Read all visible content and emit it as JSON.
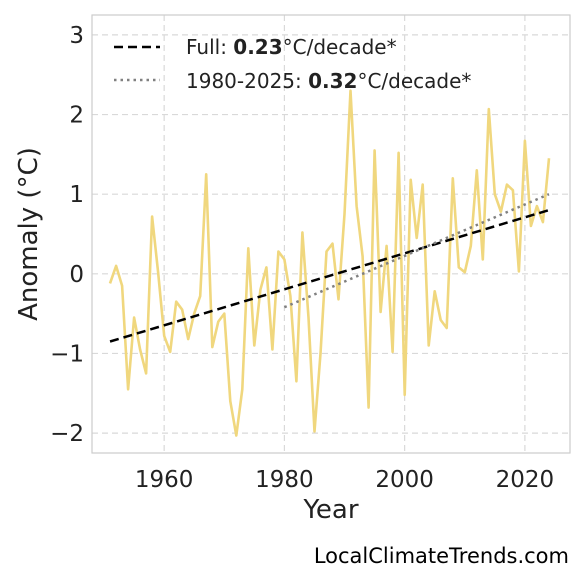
{
  "chart_data": {
    "type": "line",
    "xlabel": "Year",
    "ylabel": "Anomaly (°C)",
    "xlim": [
      1948,
      2027.5
    ],
    "ylim": [
      -2.25,
      3.25
    ],
    "xticks": [
      1960,
      1980,
      2000,
      2020
    ],
    "yticks": [
      -2,
      -1,
      0,
      1,
      2,
      3
    ],
    "ytick_labels": [
      "−2",
      "−1",
      "0",
      "1",
      "2",
      "3"
    ],
    "grid": true,
    "legend_position": "top-left",
    "colors": {
      "series": "#f0d77e",
      "full_trend": "#000000",
      "recent_trend": "#808080"
    },
    "series": [
      {
        "x": [
          1951,
          1952,
          1953,
          1954,
          1955,
          1956,
          1957,
          1958,
          1959,
          1960,
          1961,
          1962,
          1963,
          1964,
          1965,
          1966,
          1967,
          1968,
          1969,
          1970,
          1971,
          1972,
          1973,
          1974,
          1975,
          1976,
          1977,
          1978,
          1979,
          1980,
          1981,
          1982,
          1983,
          1984,
          1985,
          1986,
          1987,
          1988,
          1989,
          1990,
          1991,
          1992,
          1993,
          1994,
          1995,
          1996,
          1997,
          1998,
          1999,
          2000,
          2001,
          2002,
          2003,
          2004,
          2005,
          2006,
          2007,
          2008,
          2009,
          2010,
          2011,
          2012,
          2013,
          2014,
          2015,
          2016,
          2017,
          2018,
          2019,
          2020,
          2021,
          2022,
          2023,
          2024
        ],
        "values": [
          -0.12,
          0.1,
          -0.15,
          -1.45,
          -0.55,
          -0.95,
          -1.25,
          0.72,
          0.02,
          -0.78,
          -0.98,
          -0.35,
          -0.45,
          -0.82,
          -0.5,
          -0.28,
          1.25,
          -0.92,
          -0.6,
          -0.5,
          -1.6,
          -2.03,
          -1.45,
          0.32,
          -0.9,
          -0.2,
          0.08,
          -0.95,
          0.28,
          0.18,
          -0.28,
          -1.35,
          0.52,
          -0.55,
          -1.98,
          -1.0,
          0.28,
          0.38,
          -0.32,
          0.75,
          2.3,
          0.85,
          0.22,
          -1.68,
          1.55,
          -0.48,
          0.35,
          -0.98,
          1.52,
          -1.52,
          1.18,
          0.45,
          1.12,
          -0.9,
          -0.22,
          -0.58,
          -0.68,
          1.2,
          0.08,
          0.02,
          0.35,
          1.3,
          0.18,
          2.07,
          1.0,
          0.78,
          1.12,
          1.05,
          0.03,
          1.67,
          0.6,
          0.85,
          0.65,
          1.45
        ]
      }
    ],
    "trend_lines": [
      {
        "name": "full",
        "style": "dashed",
        "x": [
          1951,
          2024
        ],
        "values": [
          -0.85,
          0.8
        ]
      },
      {
        "name": "recent",
        "style": "dotted",
        "x": [
          1980,
          2024
        ],
        "values": [
          -0.42,
          1.0
        ]
      }
    ],
    "legend": [
      {
        "key": "full",
        "prefix": "Full: ",
        "value": "0.23",
        "suffix": "°C/decade*"
      },
      {
        "key": "recent",
        "prefix": "1980-2025: ",
        "value": "0.32",
        "suffix": "°C/decade*"
      }
    ]
  },
  "credit": "LocalClimateTrends.com"
}
